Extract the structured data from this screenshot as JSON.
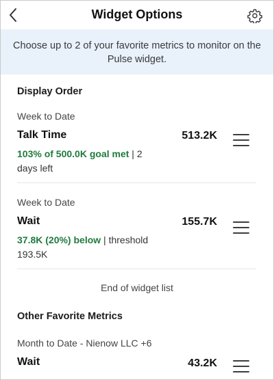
{
  "header": {
    "title": "Widget Options",
    "back_icon": "chevron-left-icon",
    "settings_icon": "gear-icon"
  },
  "banner": {
    "text": "Choose up to 2 of your favorite metrics to monitor on the Pulse widget."
  },
  "display_order": {
    "heading": "Display Order",
    "items": [
      {
        "period": "Week to Date",
        "name": "Talk Time",
        "value": "513.2K",
        "status_highlight": "103% of 500.0K goal met",
        "status_rest": " | 2 days left"
      },
      {
        "period": "Week to Date",
        "name": "Wait",
        "value": "155.7K",
        "status_highlight": "37.8K (20%) below",
        "status_rest": " | threshold 193.5K"
      }
    ],
    "end_text": "End of widget list"
  },
  "other_metrics": {
    "heading": "Other Favorite Metrics",
    "items": [
      {
        "period": "Month to Date - Nienow LLC +6",
        "name": "Wait",
        "value": "43.2K"
      }
    ]
  },
  "colors": {
    "banner_bg": "#e9f1fb",
    "status_green": "#1f7a3e"
  }
}
